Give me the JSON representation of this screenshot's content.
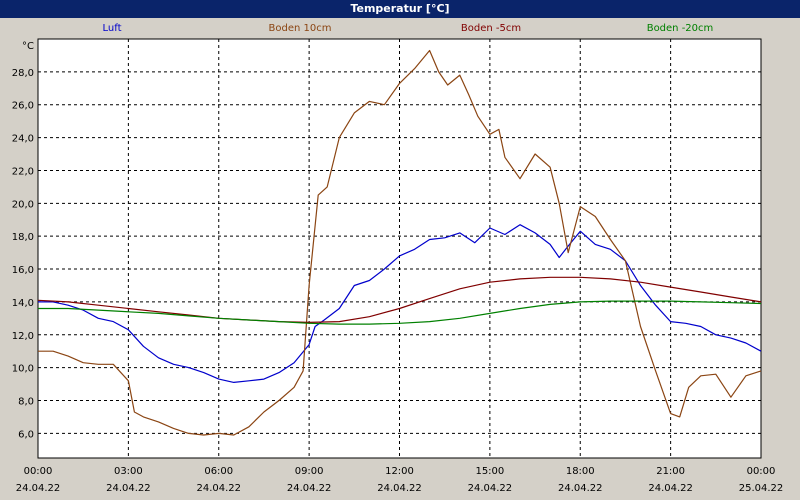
{
  "window": {
    "title": "Temperatur [°C]"
  },
  "chart_data": {
    "type": "line",
    "title": "Temperatur [°C]",
    "ylabel": "°C",
    "ylim": [
      4.5,
      30
    ],
    "xlim": [
      0,
      24
    ],
    "grid": true,
    "legend_placement": "top",
    "yticks": [
      {
        "value": 6,
        "label": "6,0"
      },
      {
        "value": 8,
        "label": "8,0"
      },
      {
        "value": 10,
        "label": "10,0"
      },
      {
        "value": 12,
        "label": "12,0"
      },
      {
        "value": 14,
        "label": "14,0"
      },
      {
        "value": 16,
        "label": "16,0"
      },
      {
        "value": 18,
        "label": "18,0"
      },
      {
        "value": 20,
        "label": "20,0"
      },
      {
        "value": 22,
        "label": "22,0"
      },
      {
        "value": 24,
        "label": "24,0"
      },
      {
        "value": 26,
        "label": "26,0"
      },
      {
        "value": 28,
        "label": "28,0"
      }
    ],
    "xticks": [
      {
        "value": 0,
        "time": "00:00",
        "date": "24.04.22"
      },
      {
        "value": 3,
        "time": "03:00",
        "date": "24.04.22"
      },
      {
        "value": 6,
        "time": "06:00",
        "date": "24.04.22"
      },
      {
        "value": 9,
        "time": "09:00",
        "date": "24.04.22"
      },
      {
        "value": 12,
        "time": "12:00",
        "date": "24.04.22"
      },
      {
        "value": 15,
        "time": "15:00",
        "date": "24.04.22"
      },
      {
        "value": 18,
        "time": "18:00",
        "date": "24.04.22"
      },
      {
        "value": 21,
        "time": "21:00",
        "date": "24.04.22"
      },
      {
        "value": 24,
        "time": "00:00",
        "date": "25.04.22"
      }
    ],
    "series": [
      {
        "name": "Luft",
        "color": "#0000cc",
        "points": [
          [
            0,
            14.0
          ],
          [
            0.5,
            14.0
          ],
          [
            1,
            13.8
          ],
          [
            1.5,
            13.5
          ],
          [
            2,
            13.0
          ],
          [
            2.5,
            12.8
          ],
          [
            3,
            12.3
          ],
          [
            3.5,
            11.3
          ],
          [
            4,
            10.6
          ],
          [
            4.5,
            10.2
          ],
          [
            5,
            10.0
          ],
          [
            5.5,
            9.7
          ],
          [
            6,
            9.3
          ],
          [
            6.5,
            9.1
          ],
          [
            7,
            9.2
          ],
          [
            7.5,
            9.3
          ],
          [
            8,
            9.7
          ],
          [
            8.5,
            10.3
          ],
          [
            9,
            11.4
          ],
          [
            9.2,
            12.5
          ],
          [
            9.5,
            12.9
          ],
          [
            10,
            13.6
          ],
          [
            10.5,
            15.0
          ],
          [
            11,
            15.3
          ],
          [
            11.5,
            16.0
          ],
          [
            12,
            16.8
          ],
          [
            12.5,
            17.2
          ],
          [
            13,
            17.8
          ],
          [
            13.5,
            17.9
          ],
          [
            14,
            18.2
          ],
          [
            14.5,
            17.6
          ],
          [
            15,
            18.5
          ],
          [
            15.5,
            18.1
          ],
          [
            16,
            18.7
          ],
          [
            16.5,
            18.2
          ],
          [
            17,
            17.5
          ],
          [
            17.3,
            16.7
          ],
          [
            17.6,
            17.4
          ],
          [
            18,
            18.3
          ],
          [
            18.5,
            17.5
          ],
          [
            19,
            17.2
          ],
          [
            19.5,
            16.5
          ],
          [
            20,
            15.0
          ],
          [
            20.5,
            13.8
          ],
          [
            21,
            12.8
          ],
          [
            21.5,
            12.7
          ],
          [
            22,
            12.5
          ],
          [
            22.5,
            12.0
          ],
          [
            23,
            11.8
          ],
          [
            23.5,
            11.5
          ],
          [
            24,
            11.0
          ]
        ]
      },
      {
        "name": "Boden 10cm",
        "color": "#8b4513",
        "points": [
          [
            0,
            11.0
          ],
          [
            0.5,
            11.0
          ],
          [
            1,
            10.7
          ],
          [
            1.5,
            10.3
          ],
          [
            2,
            10.2
          ],
          [
            2.5,
            10.2
          ],
          [
            3,
            9.2
          ],
          [
            3.2,
            7.3
          ],
          [
            3.5,
            7.0
          ],
          [
            4,
            6.7
          ],
          [
            4.5,
            6.3
          ],
          [
            5,
            6.0
          ],
          [
            5.5,
            5.9
          ],
          [
            6,
            6.0
          ],
          [
            6.5,
            5.9
          ],
          [
            7,
            6.4
          ],
          [
            7.5,
            7.3
          ],
          [
            8,
            8.0
          ],
          [
            8.5,
            8.8
          ],
          [
            8.8,
            9.8
          ],
          [
            9,
            15.0
          ],
          [
            9.3,
            20.5
          ],
          [
            9.6,
            21.0
          ],
          [
            10,
            24.0
          ],
          [
            10.5,
            25.5
          ],
          [
            11,
            26.2
          ],
          [
            11.5,
            26.0
          ],
          [
            12,
            27.3
          ],
          [
            12.5,
            28.2
          ],
          [
            13,
            29.3
          ],
          [
            13.3,
            28.0
          ],
          [
            13.6,
            27.2
          ],
          [
            14,
            27.8
          ],
          [
            14.3,
            26.6
          ],
          [
            14.6,
            25.3
          ],
          [
            15,
            24.2
          ],
          [
            15.3,
            24.5
          ],
          [
            15.5,
            22.8
          ],
          [
            16,
            21.5
          ],
          [
            16.5,
            23.0
          ],
          [
            17,
            22.2
          ],
          [
            17.3,
            20.0
          ],
          [
            17.6,
            17.0
          ],
          [
            18,
            19.8
          ],
          [
            18.5,
            19.2
          ],
          [
            19,
            17.8
          ],
          [
            19.5,
            16.5
          ],
          [
            20,
            12.5
          ],
          [
            20.5,
            9.8
          ],
          [
            21,
            7.2
          ],
          [
            21.3,
            7.0
          ],
          [
            21.6,
            8.8
          ],
          [
            22,
            9.5
          ],
          [
            22.5,
            9.6
          ],
          [
            23,
            8.2
          ],
          [
            23.5,
            9.5
          ],
          [
            24,
            9.8
          ]
        ]
      },
      {
        "name": "Boden -5cm",
        "color": "#800000",
        "points": [
          [
            0,
            14.1
          ],
          [
            1,
            14.0
          ],
          [
            2,
            13.8
          ],
          [
            3,
            13.6
          ],
          [
            4,
            13.4
          ],
          [
            5,
            13.2
          ],
          [
            6,
            13.0
          ],
          [
            7,
            12.9
          ],
          [
            8,
            12.8
          ],
          [
            9,
            12.75
          ],
          [
            10,
            12.8
          ],
          [
            11,
            13.1
          ],
          [
            12,
            13.6
          ],
          [
            13,
            14.2
          ],
          [
            14,
            14.8
          ],
          [
            15,
            15.2
          ],
          [
            16,
            15.4
          ],
          [
            17,
            15.5
          ],
          [
            18,
            15.5
          ],
          [
            19,
            15.4
          ],
          [
            20,
            15.2
          ],
          [
            21,
            14.9
          ],
          [
            22,
            14.6
          ],
          [
            23,
            14.3
          ],
          [
            24,
            14.0
          ]
        ]
      },
      {
        "name": "Boden -20cm",
        "color": "#008000",
        "points": [
          [
            0,
            13.6
          ],
          [
            1,
            13.6
          ],
          [
            2,
            13.5
          ],
          [
            3,
            13.4
          ],
          [
            4,
            13.3
          ],
          [
            5,
            13.15
          ],
          [
            6,
            13.0
          ],
          [
            7,
            12.9
          ],
          [
            8,
            12.8
          ],
          [
            9,
            12.7
          ],
          [
            10,
            12.65
          ],
          [
            11,
            12.65
          ],
          [
            12,
            12.7
          ],
          [
            13,
            12.8
          ],
          [
            14,
            13.0
          ],
          [
            15,
            13.3
          ],
          [
            16,
            13.6
          ],
          [
            17,
            13.85
          ],
          [
            18,
            14.0
          ],
          [
            19,
            14.05
          ],
          [
            20,
            14.05
          ],
          [
            21,
            14.05
          ],
          [
            22,
            14.0
          ],
          [
            23,
            13.95
          ],
          [
            24,
            13.9
          ]
        ]
      }
    ]
  }
}
